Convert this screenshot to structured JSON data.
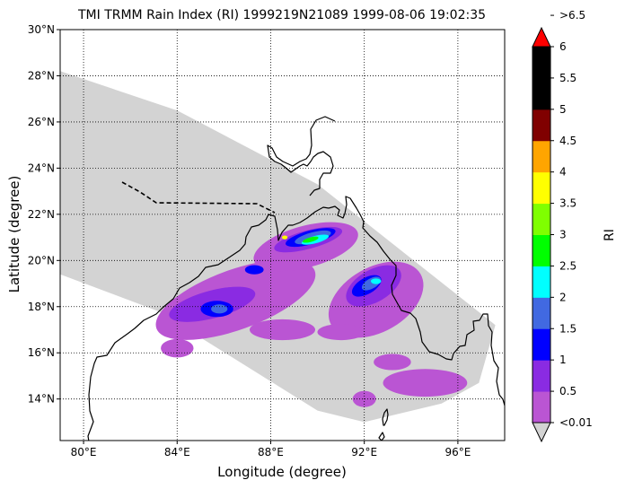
{
  "title": "TMI TRMM Rain Index (RI) 1999219N21089 1999-08-06 19:02:35",
  "x_axis_label": "Longitude (degree)",
  "y_axis_label": "Latitude (degree)",
  "colorbar_label": "RI",
  "colors": {
    "swath": "#d3d3d3",
    "land_outline": "#000000"
  },
  "chart_data": {
    "type": "heatmap",
    "projection": "cylindrical lon/lat",
    "xlim": [
      79,
      98
    ],
    "ylim": [
      12.2,
      30
    ],
    "grid": true,
    "x_ticks": [
      {
        "value": 80,
        "label": "80°E"
      },
      {
        "value": 84,
        "label": "84°E"
      },
      {
        "value": 88,
        "label": "88°E"
      },
      {
        "value": 92,
        "label": "92°E"
      },
      {
        "value": 96,
        "label": "96°E"
      }
    ],
    "y_ticks": [
      {
        "value": 14,
        "label": "14°N"
      },
      {
        "value": 16,
        "label": "16°N"
      },
      {
        "value": 18,
        "label": "18°N"
      },
      {
        "value": 20,
        "label": "20°N"
      },
      {
        "value": 22,
        "label": "22°N"
      },
      {
        "value": 24,
        "label": "24°N"
      },
      {
        "value": 26,
        "label": "26°N"
      },
      {
        "value": 28,
        "label": "28°N"
      },
      {
        "value": 30,
        "label": "30°N"
      }
    ],
    "swath_outline_lonlat": [
      [
        79,
        28.2
      ],
      [
        84,
        26.5
      ],
      [
        90,
        23.3
      ],
      [
        97.6,
        17.2
      ],
      [
        96.9,
        14.7
      ],
      [
        95.3,
        13.8
      ],
      [
        92,
        13.0
      ],
      [
        90,
        13.5
      ],
      [
        83.2,
        17.8
      ],
      [
        79,
        19.4
      ]
    ],
    "rain_regions": [
      {
        "level": 0,
        "lon": 86.5,
        "lat": 18.3,
        "rx": 3.6,
        "ry": 1.3,
        "rot": -20
      },
      {
        "level": 0,
        "lon": 89.5,
        "lat": 20.6,
        "rx": 2.3,
        "ry": 0.9,
        "rot": -15
      },
      {
        "level": 0,
        "lon": 92.5,
        "lat": 18.3,
        "rx": 2.2,
        "ry": 1.4,
        "rot": -30
      },
      {
        "level": 0,
        "lon": 94.6,
        "lat": 14.7,
        "rx": 1.8,
        "ry": 0.6,
        "rot": 0
      },
      {
        "level": 0,
        "lon": 88.5,
        "lat": 17.0,
        "rx": 1.4,
        "ry": 0.45,
        "rot": 0
      },
      {
        "level": 0,
        "lon": 91.0,
        "lat": 16.9,
        "rx": 1.0,
        "ry": 0.35,
        "rot": 0
      },
      {
        "level": 0,
        "lon": 84.0,
        "lat": 16.2,
        "rx": 0.7,
        "ry": 0.4,
        "rot": 0
      },
      {
        "level": 0,
        "lon": 92.0,
        "lat": 14.0,
        "rx": 0.5,
        "ry": 0.35,
        "rot": 0
      },
      {
        "level": 0,
        "lon": 93.2,
        "lat": 15.6,
        "rx": 0.8,
        "ry": 0.35,
        "rot": 0
      },
      {
        "level": 1,
        "lon": 85.5,
        "lat": 18.1,
        "rx": 1.9,
        "ry": 0.6,
        "rot": -15
      },
      {
        "level": 1,
        "lon": 92.4,
        "lat": 18.9,
        "rx": 1.3,
        "ry": 0.7,
        "rot": -30
      },
      {
        "level": 1,
        "lon": 89.6,
        "lat": 20.9,
        "rx": 1.5,
        "ry": 0.4,
        "rot": -15
      },
      {
        "level": 2,
        "lon": 85.7,
        "lat": 17.9,
        "rx": 0.7,
        "ry": 0.35,
        "rot": 0
      },
      {
        "level": 2,
        "lon": 92.1,
        "lat": 18.9,
        "rx": 0.7,
        "ry": 0.35,
        "rot": -30
      },
      {
        "level": 2,
        "lon": 89.7,
        "lat": 21.0,
        "rx": 1.1,
        "ry": 0.3,
        "rot": -15
      },
      {
        "level": 2,
        "lon": 87.3,
        "lat": 19.6,
        "rx": 0.4,
        "ry": 0.2,
        "rot": 0
      },
      {
        "level": 3,
        "lon": 85.8,
        "lat": 17.9,
        "rx": 0.35,
        "ry": 0.2,
        "rot": 0
      },
      {
        "level": 3,
        "lon": 92.3,
        "lat": 19.0,
        "rx": 0.45,
        "ry": 0.22,
        "rot": -30
      },
      {
        "level": 3,
        "lon": 89.8,
        "lat": 21.0,
        "rx": 0.8,
        "ry": 0.22,
        "rot": -15
      },
      {
        "level": 4,
        "lon": 89.9,
        "lat": 20.9,
        "rx": 0.6,
        "ry": 0.16,
        "rot": -15
      },
      {
        "level": 4,
        "lon": 92.5,
        "lat": 19.1,
        "rx": 0.22,
        "ry": 0.12,
        "rot": 0
      },
      {
        "level": 5,
        "lon": 89.7,
        "lat": 20.9,
        "rx": 0.35,
        "ry": 0.1,
        "rot": -15
      },
      {
        "level": 7,
        "lon": 88.6,
        "lat": 21.0,
        "rx": 0.12,
        "ry": 0.08,
        "rot": 0
      }
    ],
    "colorbar": {
      "levels": [
        {
          "label": "<0.01",
          "color": "#d3d3d3"
        },
        {
          "label": "0.5",
          "color": "#ba55d3"
        },
        {
          "label": "1",
          "color": "#8a2be2"
        },
        {
          "label": "1.5",
          "color": "#0000ff"
        },
        {
          "label": "2",
          "color": "#4169e1"
        },
        {
          "label": "2.5",
          "color": "#00ffff"
        },
        {
          "label": "3",
          "color": "#00ff00"
        },
        {
          "label": "3.5",
          "color": "#7fff00"
        },
        {
          "label": "4",
          "color": "#ffff00"
        },
        {
          "label": "4.5",
          "color": "#ffa500"
        },
        {
          "label": "5",
          "color": "#800000"
        },
        {
          "label": "5.5",
          "color": "#000000"
        },
        {
          "label": "6",
          "color": "#000000"
        },
        {
          "label": ">6.5",
          "color": "#ff0000"
        }
      ]
    }
  }
}
